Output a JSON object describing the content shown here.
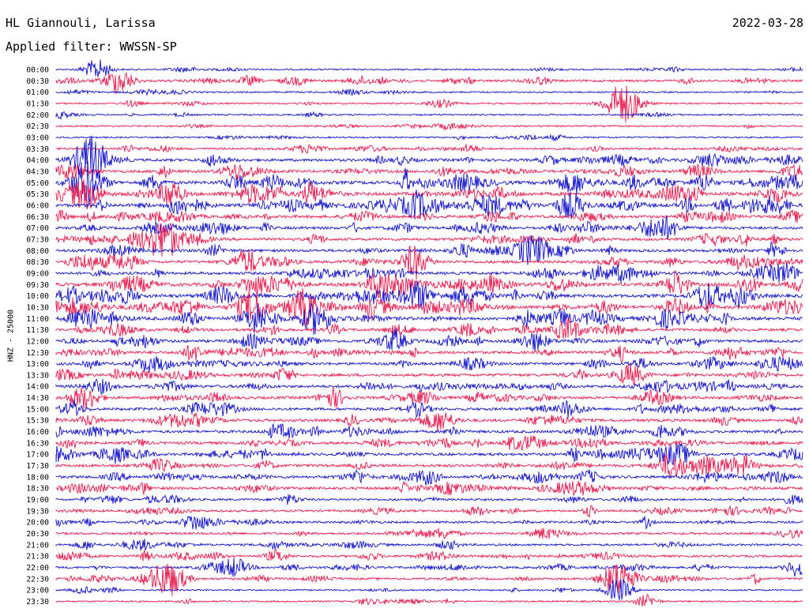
{
  "header": {
    "station": "HL Giannouli, Larissa",
    "date": "2022-03-28",
    "filter": "Applied filter: WWSSN-SP"
  },
  "colors": {
    "blue": "#1010cc",
    "red": "#e8174a"
  },
  "chart_data": {
    "type": "line",
    "ylabel": "HNZ - 25000",
    "tick_labels": [
      "00:00",
      "00:30",
      "01:00",
      "01:30",
      "02:00",
      "02:30",
      "03:00",
      "03:30",
      "04:00",
      "04:30",
      "05:00",
      "05:30",
      "06:00",
      "06:30",
      "07:00",
      "07:30",
      "08:00",
      "08:30",
      "09:00",
      "09:30",
      "10:00",
      "10:30",
      "11:00",
      "11:30",
      "12:00",
      "12:30",
      "13:00",
      "13:30",
      "14:00",
      "14:30",
      "15:00",
      "15:30",
      "16:00",
      "16:30",
      "17:00",
      "17:30",
      "18:00",
      "18:30",
      "19:00",
      "19:30",
      "20:00",
      "20:30",
      "21:00",
      "21:30",
      "22:00",
      "22:30",
      "23:00",
      "23:30"
    ],
    "trace_colors": "alternating blue/red, starting with blue at 00:00",
    "activity_level": [
      1,
      2,
      1,
      1,
      1,
      1,
      1,
      2,
      3,
      3,
      4,
      4,
      4,
      3,
      3,
      3,
      3,
      3,
      3,
      4,
      4,
      4,
      4,
      3,
      3,
      3,
      3,
      3,
      3,
      3,
      3,
      3,
      3,
      3,
      3,
      3,
      3,
      3,
      2,
      2,
      2,
      2,
      2,
      2,
      2,
      2,
      1,
      1
    ],
    "events": [
      {
        "row": 0,
        "x": 123,
        "amp": 13
      },
      {
        "row": 1,
        "x": 150,
        "amp": 16
      },
      {
        "row": 1,
        "x": 315,
        "amp": 6
      },
      {
        "row": 3,
        "x": 788,
        "amp": 24
      },
      {
        "row": 3,
        "x": 168,
        "amp": 4
      },
      {
        "row": 8,
        "x": 115,
        "amp": 22
      },
      {
        "row": 10,
        "x": 110,
        "amp": 22
      },
      {
        "row": 11,
        "x": 110,
        "amp": 18
      },
      {
        "row": 12,
        "x": 722,
        "amp": 16
      },
      {
        "row": 12,
        "x": 620,
        "amp": 10
      },
      {
        "row": 15,
        "x": 208,
        "amp": 20
      },
      {
        "row": 16,
        "x": 672,
        "amp": 18
      },
      {
        "row": 17,
        "x": 525,
        "amp": 16
      },
      {
        "row": 18,
        "x": 995,
        "amp": 12
      },
      {
        "row": 19,
        "x": 485,
        "amp": 14
      },
      {
        "row": 20,
        "x": 528,
        "amp": 18
      },
      {
        "row": 21,
        "x": 320,
        "amp": 20
      },
      {
        "row": 21,
        "x": 380,
        "amp": 18
      },
      {
        "row": 22,
        "x": 397,
        "amp": 14
      },
      {
        "row": 22,
        "x": 112,
        "amp": 12
      },
      {
        "row": 25,
        "x": 245,
        "amp": 10
      },
      {
        "row": 36,
        "x": 745,
        "amp": 8
      },
      {
        "row": 40,
        "x": 245,
        "amp": 10
      },
      {
        "row": 43,
        "x": 350,
        "amp": 8
      },
      {
        "row": 44,
        "x": 297,
        "amp": 8
      },
      {
        "row": 44,
        "x": 1012,
        "amp": 12
      },
      {
        "row": 45,
        "x": 213,
        "amp": 22
      },
      {
        "row": 45,
        "x": 783,
        "amp": 22
      },
      {
        "row": 46,
        "x": 783,
        "amp": 14
      },
      {
        "row": 47,
        "x": 818,
        "amp": 8
      }
    ]
  }
}
